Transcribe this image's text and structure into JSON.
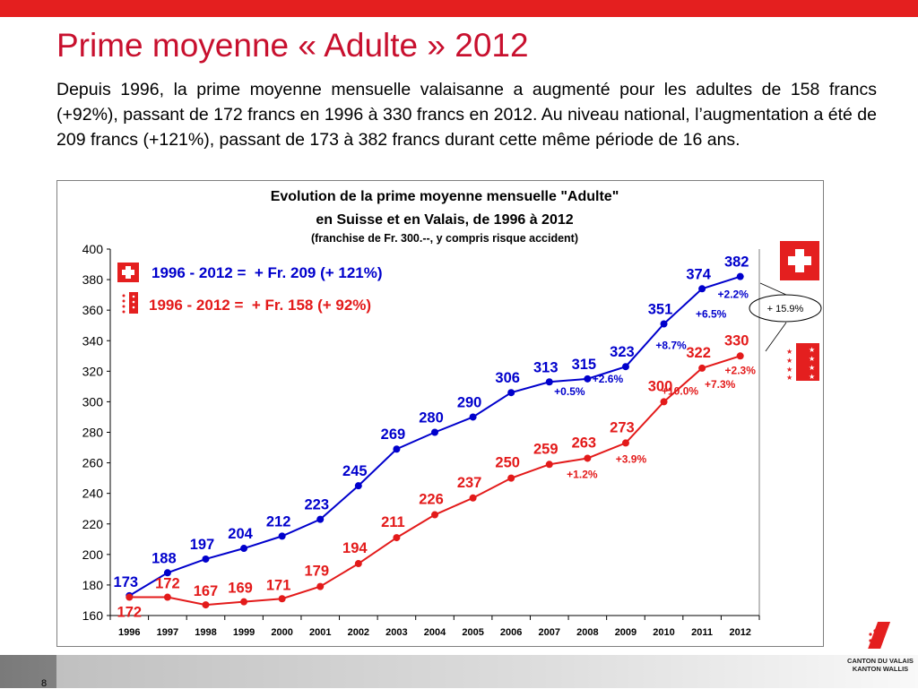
{
  "slide": {
    "title": "Prime moyenne « Adulte » 2012",
    "intro": "Depuis 1996, la prime moyenne mensuelle valaisanne a augmenté pour les adultes de 158 francs (+92%), passant de 172 francs en 1996 à 330 francs en 2012. Au niveau national, l’augmentation a été de 209 francs (+121%), passant de 173 à 382 francs durant cette même période de 16 ans.",
    "page_number": "8",
    "logo_text_line1": "CANTON DU VALAIS",
    "logo_text_line2": "KANTON WALLIS",
    "colors": {
      "brand_red": "#e41f1f",
      "bar_grey": "#8c8c8c"
    }
  },
  "chart_data": {
    "type": "line",
    "title_line1": "Evolution de la prime moyenne mensuelle \"Adulte\"",
    "title_line2": "en Suisse et en Valais, de 1996 à 2012",
    "subtitle": "(franchise de Fr. 300.--, y compris risque accident)",
    "x": [
      "1996",
      "1997",
      "1998",
      "1999",
      "2000",
      "2001",
      "2002",
      "2003",
      "2004",
      "2005",
      "2006",
      "2007",
      "2008",
      "2009",
      "2010",
      "2011",
      "2012"
    ],
    "ylim": [
      160,
      400
    ],
    "yticks": [
      160,
      180,
      200,
      220,
      240,
      260,
      280,
      300,
      320,
      340,
      360,
      380,
      400
    ],
    "grid": false,
    "series": [
      {
        "name": "1996 - 2012 =  + Fr. 209 (+ 121%)",
        "icon": "swiss-flag-icon",
        "color": "#0000cc",
        "values": [
          173,
          188,
          197,
          204,
          212,
          223,
          245,
          269,
          280,
          290,
          306,
          313,
          315,
          323,
          351,
          374,
          382
        ]
      },
      {
        "name": "1996 - 2012 =  + Fr. 158 (+ 92%)",
        "icon": "valais-flag-icon",
        "color": "#e31a1a",
        "values": [
          172,
          172,
          167,
          169,
          171,
          179,
          194,
          211,
          226,
          237,
          250,
          259,
          263,
          273,
          300,
          322,
          330
        ]
      }
    ],
    "percent_annotations": [
      {
        "series": 0,
        "x": "2008",
        "text": "+0.5%"
      },
      {
        "series": 0,
        "x": "2009",
        "text": "+2.6%"
      },
      {
        "series": 0,
        "x": "2010",
        "text": "+8.7%"
      },
      {
        "series": 0,
        "x": "2011",
        "text": "+6.5%"
      },
      {
        "series": 0,
        "x": "2012",
        "text": "+2.2%"
      },
      {
        "series": 1,
        "x": "2008",
        "text": "+1.2%"
      },
      {
        "series": 1,
        "x": "2009",
        "text": "+3.9%"
      },
      {
        "series": 1,
        "x": "2010",
        "text": "+10.0%"
      },
      {
        "series": 1,
        "x": "2011",
        "text": "+7.3%"
      },
      {
        "series": 1,
        "x": "2012",
        "text": "+2.3%"
      }
    ],
    "callout": "+ 15.9%"
  }
}
